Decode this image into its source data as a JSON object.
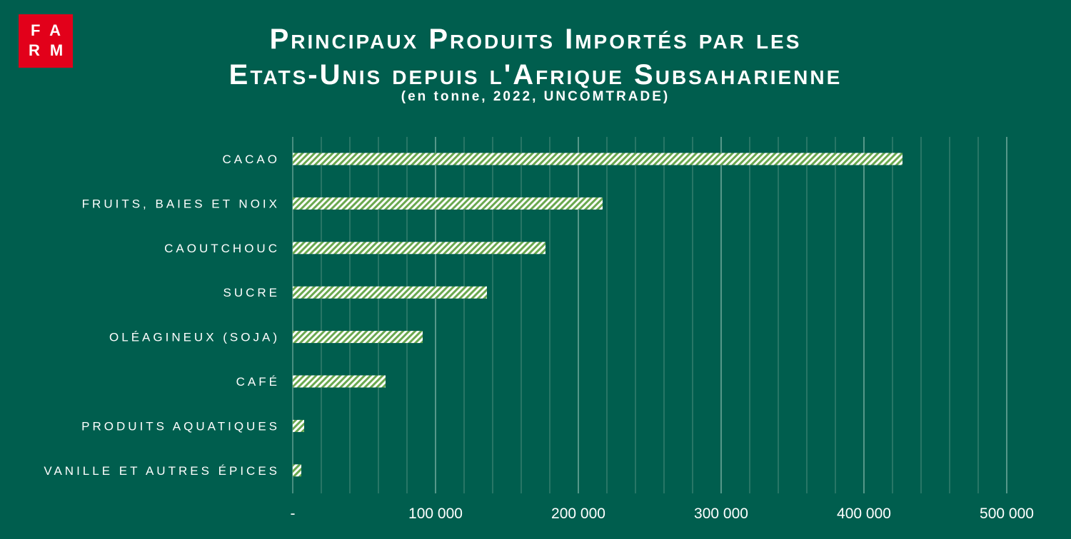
{
  "logo": {
    "line1": "FA",
    "line2": "RM"
  },
  "chart_data": {
    "type": "bar",
    "orientation": "horizontal",
    "title_line1": "Principaux Produits Importés par les",
    "title_line2": "Etats-Unis depuis l'Afrique Subsaharienne",
    "subtitle": "(en tonne, 2022, UNCOMTRADE)",
    "categories": [
      "CACAO",
      "FRUITS, BAIES ET NOIX",
      "CAOUTCHOUC",
      "SUCRE",
      "OLÉAGINEUX (SOJA)",
      "CAFÉ",
      "PRODUITS AQUATIQUES",
      "VANILLE ET AUTRES ÉPICES"
    ],
    "values": [
      427000,
      217000,
      177000,
      136000,
      91000,
      65000,
      8000,
      6000
    ],
    "xlim": [
      0,
      500000
    ],
    "x_ticks": [
      {
        "value": 0,
        "label": "-"
      },
      {
        "value": 100000,
        "label": "100 000"
      },
      {
        "value": 200000,
        "label": "200 000"
      },
      {
        "value": 300000,
        "label": "300 000"
      },
      {
        "value": 400000,
        "label": "400 000"
      },
      {
        "value": 500000,
        "label": "500 000"
      }
    ],
    "minor_grid_step": 20000,
    "grid": true,
    "colors": {
      "background": "#005e4e",
      "bar_stripe": "#6aa84f",
      "bar_fill": "#ffffff",
      "grid": "#5a9a8a",
      "logo": "#e2001a"
    }
  }
}
